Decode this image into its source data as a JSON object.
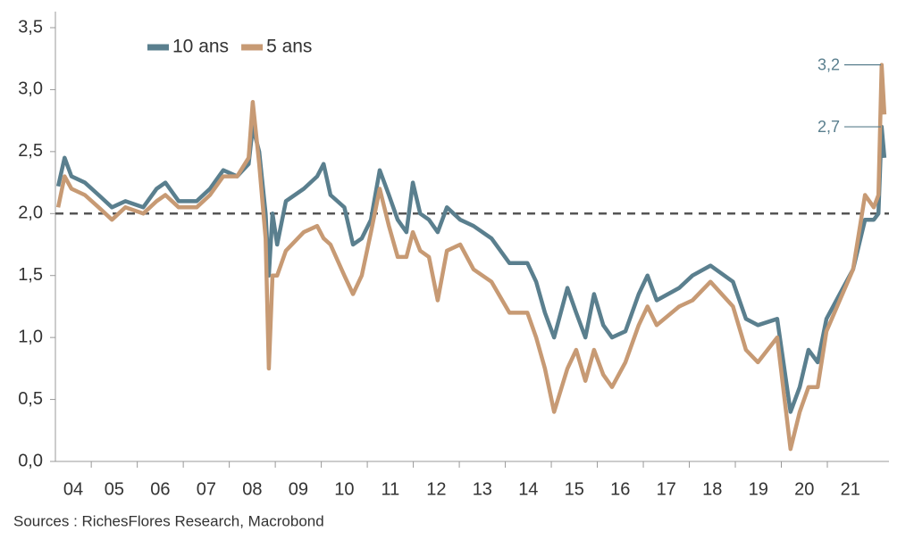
{
  "chart_data": {
    "type": "line",
    "source": "Sources : RichesFlores Research, Macrobond",
    "x": [
      4.28,
      4.42,
      4.57,
      4.86,
      5.16,
      5.45,
      5.74,
      6.13,
      6.42,
      6.61,
      6.9,
      7.29,
      7.58,
      7.87,
      8.17,
      8.42,
      8.51,
      8.65,
      8.79,
      8.86,
      8.94,
      9.04,
      9.23,
      9.62,
      9.91,
      10.05,
      10.2,
      10.5,
      10.69,
      10.88,
      11.08,
      11.27,
      11.47,
      11.66,
      11.85,
      11.99,
      12.15,
      12.34,
      12.53,
      12.73,
      13.02,
      13.31,
      13.7,
      14.09,
      14.48,
      14.67,
      14.86,
      15.06,
      15.35,
      15.54,
      15.74,
      15.93,
      16.13,
      16.32,
      16.61,
      16.9,
      17.09,
      17.29,
      17.78,
      18.07,
      18.46,
      18.95,
      19.23,
      19.49,
      19.91,
      20.2,
      20.4,
      20.59,
      20.79,
      20.98,
      21.27,
      21.56,
      21.82,
      22.01,
      22.11,
      22.18,
      22.24
    ],
    "series": [
      {
        "name": "10 ans",
        "color": "#5a7f8e",
        "values": [
          2.22,
          2.45,
          2.3,
          2.25,
          2.15,
          2.05,
          2.1,
          2.05,
          2.2,
          2.25,
          2.1,
          2.1,
          2.2,
          2.35,
          2.3,
          2.4,
          2.7,
          2.5,
          2.0,
          1.5,
          2.0,
          1.75,
          2.1,
          2.2,
          2.3,
          2.4,
          2.15,
          2.05,
          1.75,
          1.8,
          1.95,
          2.35,
          2.15,
          1.95,
          1.85,
          2.25,
          2.0,
          1.95,
          1.85,
          2.05,
          1.95,
          1.9,
          1.8,
          1.6,
          1.6,
          1.45,
          1.2,
          1.0,
          1.4,
          1.2,
          1.0,
          1.35,
          1.1,
          1.0,
          1.05,
          1.35,
          1.5,
          1.3,
          1.4,
          1.5,
          1.58,
          1.45,
          1.15,
          1.1,
          1.15,
          0.4,
          0.6,
          0.9,
          0.8,
          1.15,
          1.35,
          1.55,
          1.95,
          1.95,
          2.0,
          2.7,
          2.45
        ]
      },
      {
        "name": "5 ans",
        "color": "#c79a74",
        "values": [
          2.05,
          2.3,
          2.2,
          2.15,
          2.05,
          1.95,
          2.05,
          2.0,
          2.1,
          2.15,
          2.05,
          2.05,
          2.15,
          2.3,
          2.3,
          2.45,
          2.9,
          2.4,
          1.8,
          0.75,
          1.5,
          1.5,
          1.7,
          1.85,
          1.9,
          1.8,
          1.75,
          1.5,
          1.35,
          1.5,
          1.85,
          2.2,
          1.9,
          1.65,
          1.65,
          1.85,
          1.7,
          1.65,
          1.3,
          1.7,
          1.75,
          1.55,
          1.45,
          1.2,
          1.2,
          1.0,
          0.75,
          0.4,
          0.75,
          0.9,
          0.65,
          0.9,
          0.7,
          0.6,
          0.8,
          1.1,
          1.25,
          1.1,
          1.25,
          1.3,
          1.45,
          1.25,
          0.9,
          0.8,
          1.0,
          0.1,
          0.4,
          0.6,
          0.6,
          1.05,
          1.3,
          1.55,
          2.15,
          2.05,
          2.15,
          3.2,
          2.8
        ]
      }
    ],
    "annotations": [
      {
        "value": 3.2,
        "label": "3,2"
      },
      {
        "value": 2.7,
        "label": "2,7"
      }
    ],
    "reference_line": 2,
    "xlim": [
      4.22,
      22.34
    ],
    "xticks": [
      {
        "value": 4,
        "label": "04"
      },
      {
        "value": 5,
        "label": "05"
      },
      {
        "value": 6,
        "label": "06"
      },
      {
        "value": 7,
        "label": "07"
      },
      {
        "value": 8,
        "label": "08"
      },
      {
        "value": 9,
        "label": "09"
      },
      {
        "value": 10,
        "label": "10"
      },
      {
        "value": 11,
        "label": "11"
      },
      {
        "value": 12,
        "label": "12"
      },
      {
        "value": 13,
        "label": "13"
      },
      {
        "value": 14,
        "label": "14"
      },
      {
        "value": 15,
        "label": "15"
      },
      {
        "value": 16,
        "label": "16"
      },
      {
        "value": 17,
        "label": "17"
      },
      {
        "value": 18,
        "label": "18"
      },
      {
        "value": 19,
        "label": "19"
      },
      {
        "value": 20,
        "label": "20"
      },
      {
        "value": 21,
        "label": "21"
      }
    ],
    "ylim": [
      0,
      3.5
    ],
    "yticks": [
      {
        "value": 0,
        "label": "0,0"
      },
      {
        "value": 0.5,
        "label": "0,5"
      },
      {
        "value": 1,
        "label": "1,0"
      },
      {
        "value": 1.5,
        "label": "1,5"
      },
      {
        "value": 2,
        "label": "2,0"
      },
      {
        "value": 2.5,
        "label": "2,5"
      },
      {
        "value": 3,
        "label": "3,0"
      },
      {
        "value": 3.5,
        "label": "3,5"
      }
    ],
    "legend": "top-left",
    "grid": false
  }
}
